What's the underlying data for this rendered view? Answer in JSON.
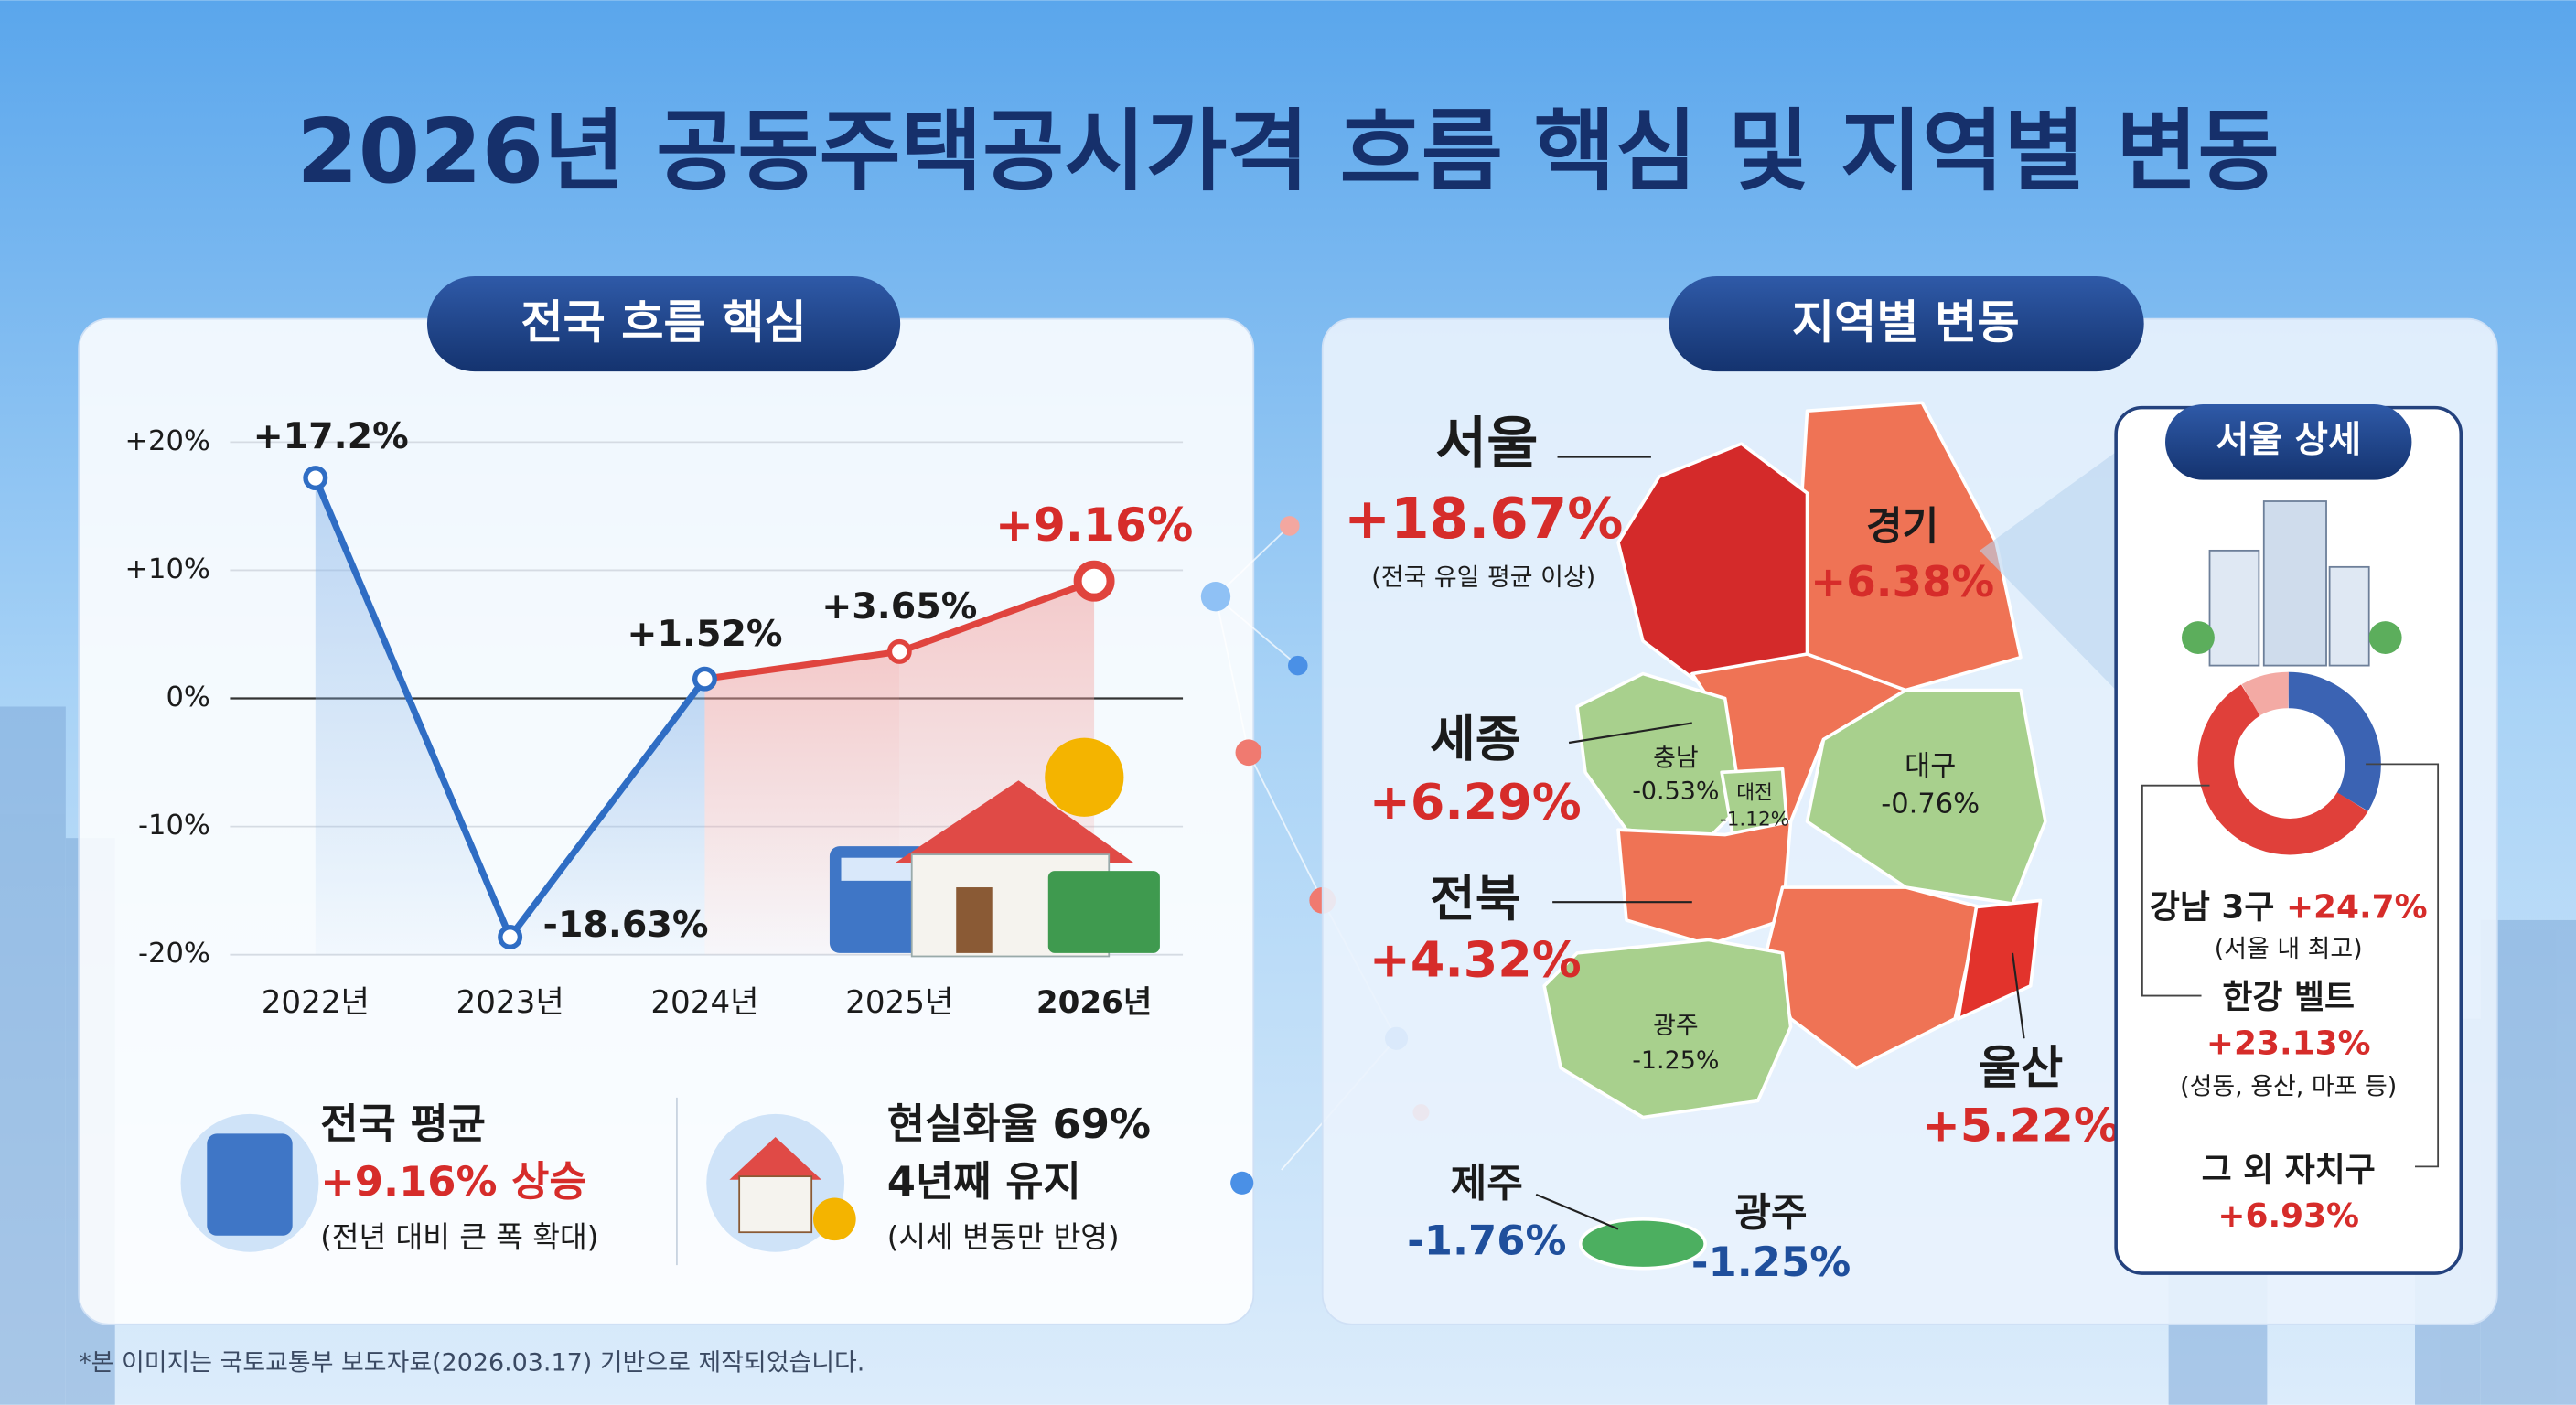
{
  "header": {
    "title": "2026년 공동주택공시가격 흐름 핵심 및 지역별 변동"
  },
  "chart_data": {
    "type": "line",
    "title": "전국 흐름 핵심",
    "categories": [
      "2022년",
      "2023년",
      "2024년",
      "2025년",
      "2026년"
    ],
    "values": [
      17.2,
      -18.63,
      1.52,
      3.65,
      9.16
    ],
    "value_labels": [
      "+17.2%",
      "-18.63%",
      "+1.52%",
      "+3.65%",
      "+9.16%"
    ],
    "color": "#2f6dc4",
    "segment_colors": [
      "#2f6dc4",
      "#2f6dc4",
      "#e0443e",
      "#e0443e"
    ],
    "ylim": [
      -20,
      20
    ],
    "yticks": [
      {
        "value": 20,
        "label": "+20%"
      },
      {
        "value": 10,
        "label": "+10%"
      },
      {
        "value": 0,
        "label": "0%"
      },
      {
        "value": -10,
        "label": "-10%"
      },
      {
        "value": -20,
        "label": "-20%"
      }
    ],
    "grid": true
  },
  "stats": [
    {
      "title": "전국 평균",
      "highlight": "+9.16% 상승",
      "note": "(전년 대비 큰 폭 확대)"
    },
    {
      "title": "현실화율 69%",
      "highlight": "4년째 유지",
      "note": "(시세 변동만 반영)"
    }
  ],
  "footnote": "*본 이미지는 국토교통부 보도자료(2026.03.17) 기반으로 제작되었습니다.",
  "regional": {
    "title": "지역별 변동",
    "callouts": [
      {
        "name": "서울",
        "change": "+18.67%",
        "note": "(전국 유일 평균 이상)"
      },
      {
        "name": "경기",
        "change": "+6.38%"
      },
      {
        "name": "세종",
        "change": "+6.29%"
      },
      {
        "name": "전북",
        "change": "+4.32%"
      },
      {
        "name": "울산",
        "change": "+5.22%"
      },
      {
        "name": "제주",
        "change": "-1.76%"
      },
      {
        "name": "광주",
        "change": "-1.25%"
      }
    ],
    "map_labels": [
      {
        "name": "충남",
        "change": "-0.53%"
      },
      {
        "name": "대전",
        "change": "-1.12%"
      },
      {
        "name": "대구",
        "change": "-0.76%"
      },
      {
        "name": "광주",
        "change": "-1.25%"
      }
    ],
    "seoul_detail": {
      "title": "서울 상세",
      "items": [
        {
          "name": "강남 3구",
          "change": "+24.7%",
          "note": "(서울 내 최고)"
        },
        {
          "name": "한강 벨트",
          "change": "+23.13%",
          "note": "(성동, 용산, 마포 등)"
        },
        {
          "name": "그 외 자치구",
          "change": "+6.93%"
        }
      ]
    }
  }
}
